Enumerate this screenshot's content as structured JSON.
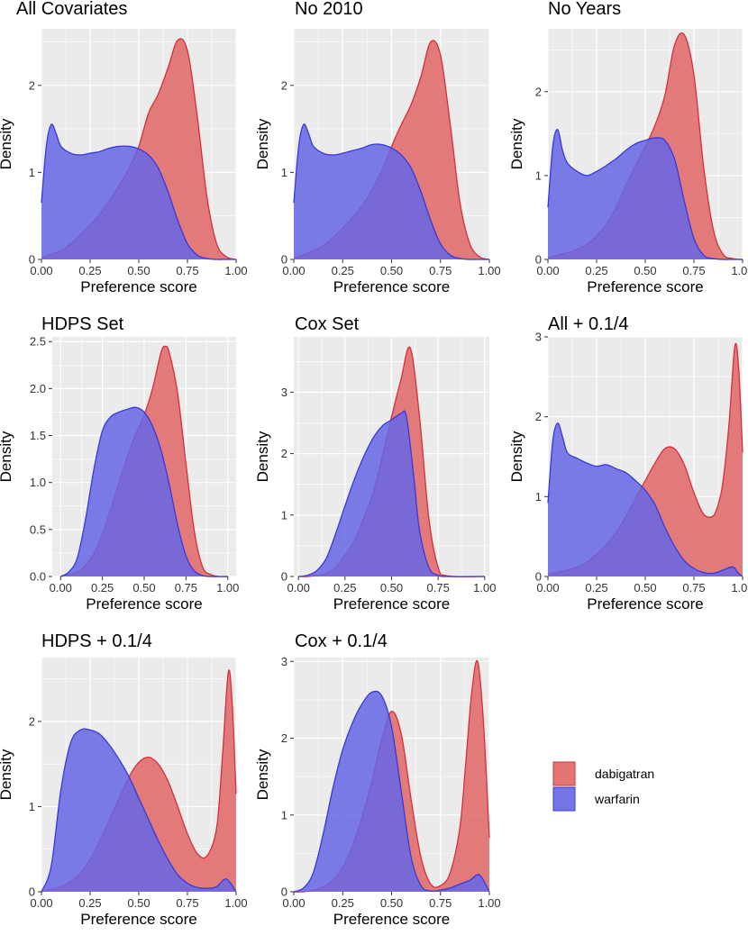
{
  "chart_data": [
    {
      "type": "area",
      "title": "All Covariates",
      "xlabel": "Preference score",
      "ylabel": "Density",
      "xlim": [
        0,
        1
      ],
      "ylim": [
        0,
        2.65
      ],
      "xticks": [
        0,
        0.25,
        0.5,
        0.75,
        1
      ],
      "xtick_labels": [
        "0.00",
        "0.25",
        "0.50",
        "0.75",
        "1.00"
      ],
      "yticks": [
        0,
        1,
        2
      ],
      "ytick_labels": [
        "0",
        "1",
        "2"
      ],
      "series": [
        {
          "name": "dabigatran",
          "x": [
            0,
            0.05,
            0.1,
            0.15,
            0.2,
            0.25,
            0.3,
            0.35,
            0.4,
            0.45,
            0.5,
            0.55,
            0.6,
            0.65,
            0.7,
            0.75,
            0.8,
            0.85,
            0.9,
            0.95,
            1.0
          ],
          "y": [
            0.02,
            0.06,
            0.1,
            0.18,
            0.28,
            0.4,
            0.52,
            0.68,
            0.85,
            1.05,
            1.3,
            1.68,
            1.9,
            2.2,
            2.52,
            2.4,
            1.65,
            0.72,
            0.18,
            0.03,
            0
          ]
        },
        {
          "name": "warfarin",
          "x": [
            0,
            0.025,
            0.05,
            0.075,
            0.1,
            0.15,
            0.2,
            0.25,
            0.3,
            0.35,
            0.4,
            0.45,
            0.5,
            0.55,
            0.6,
            0.65,
            0.7,
            0.75,
            0.8,
            0.85,
            0.9,
            0.95,
            1.0
          ],
          "y": [
            0.65,
            1.3,
            1.55,
            1.45,
            1.3,
            1.22,
            1.2,
            1.22,
            1.24,
            1.28,
            1.3,
            1.3,
            1.27,
            1.2,
            1.05,
            0.78,
            0.45,
            0.18,
            0.05,
            0.01,
            0,
            0,
            0
          ]
        }
      ]
    },
    {
      "type": "area",
      "title": "No 2010",
      "xlabel": "Preference score",
      "ylabel": "Density",
      "xlim": [
        0,
        1
      ],
      "ylim": [
        0,
        2.65
      ],
      "xticks": [
        0,
        0.25,
        0.5,
        0.75,
        1
      ],
      "xtick_labels": [
        "0.00",
        "0.25",
        "0.50",
        "0.75",
        "1.00"
      ],
      "yticks": [
        0,
        1,
        2
      ],
      "ytick_labels": [
        "0",
        "1",
        "2"
      ],
      "series": [
        {
          "name": "dabigatran",
          "x": [
            0,
            0.05,
            0.1,
            0.15,
            0.2,
            0.25,
            0.3,
            0.35,
            0.4,
            0.45,
            0.5,
            0.55,
            0.6,
            0.65,
            0.7,
            0.75,
            0.8,
            0.85,
            0.9,
            0.95,
            1.0
          ],
          "y": [
            0.02,
            0.05,
            0.1,
            0.16,
            0.25,
            0.36,
            0.48,
            0.62,
            0.8,
            1.02,
            1.3,
            1.55,
            1.78,
            2.1,
            2.5,
            2.35,
            1.55,
            0.65,
            0.18,
            0.03,
            0
          ]
        },
        {
          "name": "warfarin",
          "x": [
            0,
            0.025,
            0.05,
            0.075,
            0.1,
            0.15,
            0.2,
            0.25,
            0.3,
            0.35,
            0.4,
            0.45,
            0.5,
            0.55,
            0.6,
            0.65,
            0.7,
            0.75,
            0.8,
            0.85,
            0.9,
            0.95,
            1.0
          ],
          "y": [
            0.65,
            1.3,
            1.55,
            1.45,
            1.3,
            1.22,
            1.2,
            1.22,
            1.25,
            1.28,
            1.32,
            1.32,
            1.28,
            1.2,
            1.05,
            0.78,
            0.45,
            0.18,
            0.05,
            0.01,
            0,
            0,
            0
          ]
        }
      ]
    },
    {
      "type": "area",
      "title": "No Years",
      "xlabel": "Preference score",
      "ylabel": "Density",
      "xlim": [
        0,
        1
      ],
      "ylim": [
        0,
        2.75
      ],
      "xticks": [
        0,
        0.25,
        0.5,
        0.75,
        1
      ],
      "xtick_labels": [
        "0.00",
        "0.25",
        "0.50",
        "0.75",
        "1.00"
      ],
      "yticks": [
        0,
        1,
        2
      ],
      "ytick_labels": [
        "0",
        "1",
        "2"
      ],
      "series": [
        {
          "name": "dabigatran",
          "x": [
            0,
            0.05,
            0.1,
            0.15,
            0.2,
            0.25,
            0.3,
            0.35,
            0.4,
            0.45,
            0.5,
            0.55,
            0.6,
            0.65,
            0.7,
            0.75,
            0.8,
            0.85,
            0.9,
            0.95,
            1.0
          ],
          "y": [
            0.02,
            0.05,
            0.08,
            0.12,
            0.18,
            0.28,
            0.42,
            0.62,
            0.88,
            1.12,
            1.35,
            1.6,
            1.95,
            2.55,
            2.68,
            2.2,
            1.1,
            0.35,
            0.06,
            0.01,
            0
          ]
        },
        {
          "name": "warfarin",
          "x": [
            0,
            0.025,
            0.05,
            0.075,
            0.1,
            0.15,
            0.2,
            0.25,
            0.3,
            0.35,
            0.4,
            0.45,
            0.5,
            0.55,
            0.6,
            0.65,
            0.7,
            0.75,
            0.8,
            0.85,
            0.9,
            0.95,
            1.0
          ],
          "y": [
            0.62,
            1.35,
            1.55,
            1.3,
            1.15,
            1.05,
            1.0,
            1.05,
            1.12,
            1.2,
            1.3,
            1.38,
            1.42,
            1.45,
            1.42,
            1.2,
            0.7,
            0.25,
            0.05,
            0.01,
            0,
            0,
            0
          ]
        }
      ]
    },
    {
      "type": "area",
      "title": "HDPS Set",
      "xlabel": "Preference score",
      "ylabel": "Density",
      "xlim": [
        -0.05,
        1.05
      ],
      "ylim": [
        0,
        2.55
      ],
      "xticks": [
        0,
        0.25,
        0.5,
        0.75,
        1
      ],
      "xtick_labels": [
        "0.00",
        "0.25",
        "0.50",
        "0.75",
        "1.00"
      ],
      "yticks": [
        0,
        0.5,
        1,
        1.5,
        2,
        2.5
      ],
      "ytick_labels": [
        "0.0",
        "0.5",
        "1.0",
        "1.5",
        "2.0",
        "2.5"
      ],
      "series": [
        {
          "name": "dabigatran",
          "x": [
            0,
            0.05,
            0.1,
            0.15,
            0.2,
            0.25,
            0.3,
            0.35,
            0.4,
            0.45,
            0.5,
            0.55,
            0.6,
            0.625,
            0.65,
            0.7,
            0.75,
            0.8,
            0.85,
            0.9,
            0.95,
            1.0
          ],
          "y": [
            0,
            0.02,
            0.05,
            0.12,
            0.25,
            0.45,
            0.72,
            1.0,
            1.28,
            1.52,
            1.72,
            2.0,
            2.38,
            2.45,
            2.38,
            1.95,
            1.2,
            0.48,
            0.1,
            0.02,
            0,
            0
          ]
        },
        {
          "name": "warfarin",
          "x": [
            0,
            0.05,
            0.1,
            0.15,
            0.2,
            0.25,
            0.3,
            0.35,
            0.4,
            0.45,
            0.5,
            0.55,
            0.6,
            0.65,
            0.7,
            0.75,
            0.8,
            0.85,
            0.9,
            0.95,
            1.0
          ],
          "y": [
            0,
            0.05,
            0.2,
            0.62,
            1.15,
            1.55,
            1.7,
            1.75,
            1.78,
            1.8,
            1.75,
            1.6,
            1.35,
            0.98,
            0.55,
            0.22,
            0.06,
            0.01,
            0,
            0,
            0
          ]
        }
      ]
    },
    {
      "type": "area",
      "title": "Cox Set",
      "xlabel": "Preference score",
      "ylabel": "Density",
      "xlim": [
        -0.025,
        1.025
      ],
      "ylim": [
        0,
        3.9
      ],
      "xticks": [
        0,
        0.25,
        0.5,
        0.75,
        1
      ],
      "xtick_labels": [
        "0.00",
        "0.25",
        "0.50",
        "0.75",
        "1.00"
      ],
      "yticks": [
        0,
        1,
        2,
        3
      ],
      "ytick_labels": [
        "0",
        "1",
        "2",
        "3"
      ],
      "series": [
        {
          "name": "dabigatran",
          "x": [
            0,
            0.05,
            0.1,
            0.15,
            0.2,
            0.25,
            0.3,
            0.35,
            0.4,
            0.45,
            0.5,
            0.55,
            0.6,
            0.65,
            0.7,
            0.75,
            0.8,
            1.0
          ],
          "y": [
            0,
            0,
            0.02,
            0.05,
            0.15,
            0.35,
            0.58,
            0.95,
            1.35,
            1.95,
            2.6,
            3.2,
            3.72,
            2.6,
            0.95,
            0.15,
            0.01,
            0
          ]
        },
        {
          "name": "warfarin",
          "x": [
            0,
            0.05,
            0.1,
            0.15,
            0.2,
            0.25,
            0.3,
            0.35,
            0.4,
            0.45,
            0.5,
            0.55,
            0.58,
            0.62,
            0.65,
            0.7,
            0.75,
            0.8,
            1.0
          ],
          "y": [
            0,
            0.02,
            0.1,
            0.3,
            0.7,
            1.15,
            1.58,
            1.95,
            2.25,
            2.45,
            2.55,
            2.65,
            2.6,
            1.6,
            0.75,
            0.15,
            0.02,
            0,
            0
          ]
        }
      ]
    },
    {
      "type": "area",
      "title": "All + 0.1/4",
      "xlabel": "Preference score",
      "ylabel": "Density",
      "xlim": [
        0,
        1
      ],
      "ylim": [
        0,
        3.0
      ],
      "xticks": [
        0,
        0.25,
        0.5,
        0.75,
        1
      ],
      "xtick_labels": [
        "0.00",
        "0.25",
        "0.50",
        "0.75",
        "1.00"
      ],
      "yticks": [
        0,
        1,
        2,
        3
      ],
      "ytick_labels": [
        "0",
        "1",
        "2",
        "3"
      ],
      "series": [
        {
          "name": "dabigatran",
          "x": [
            0,
            0.05,
            0.1,
            0.15,
            0.2,
            0.25,
            0.3,
            0.35,
            0.4,
            0.45,
            0.5,
            0.55,
            0.6,
            0.65,
            0.7,
            0.75,
            0.8,
            0.85,
            0.88,
            0.9,
            0.93,
            0.96,
            0.98,
            1.0
          ],
          "y": [
            0.03,
            0.05,
            0.08,
            0.12,
            0.18,
            0.28,
            0.4,
            0.55,
            0.75,
            0.98,
            1.2,
            1.42,
            1.6,
            1.6,
            1.4,
            1.05,
            0.78,
            0.76,
            0.95,
            1.2,
            1.9,
            2.88,
            2.6,
            1.55
          ]
        },
        {
          "name": "warfarin",
          "x": [
            0,
            0.025,
            0.05,
            0.075,
            0.1,
            0.15,
            0.2,
            0.25,
            0.3,
            0.35,
            0.4,
            0.45,
            0.5,
            0.55,
            0.6,
            0.65,
            0.7,
            0.75,
            0.8,
            0.85,
            0.9,
            0.95,
            0.975,
            1.0
          ],
          "y": [
            0.92,
            1.7,
            1.92,
            1.75,
            1.55,
            1.48,
            1.42,
            1.38,
            1.4,
            1.35,
            1.3,
            1.2,
            1.08,
            0.9,
            0.62,
            0.38,
            0.2,
            0.1,
            0.05,
            0.04,
            0.08,
            0.12,
            0.05,
            0
          ]
        }
      ]
    },
    {
      "type": "area",
      "title": "HDPS + 0.1/4",
      "xlabel": "Preference score",
      "ylabel": "Density",
      "xlim": [
        0,
        1
      ],
      "ylim": [
        0,
        2.75
      ],
      "xticks": [
        0,
        0.25,
        0.5,
        0.75,
        1
      ],
      "xtick_labels": [
        "0.00",
        "0.25",
        "0.50",
        "0.75",
        "1.00"
      ],
      "yticks": [
        0,
        1,
        2
      ],
      "ytick_labels": [
        "0",
        "1",
        "2"
      ],
      "series": [
        {
          "name": "dabigatran",
          "x": [
            0,
            0.05,
            0.1,
            0.15,
            0.2,
            0.25,
            0.3,
            0.35,
            0.4,
            0.45,
            0.5,
            0.55,
            0.6,
            0.65,
            0.7,
            0.75,
            0.8,
            0.85,
            0.9,
            0.93,
            0.96,
            0.98,
            1.0
          ],
          "y": [
            0,
            0.03,
            0.06,
            0.12,
            0.22,
            0.38,
            0.6,
            0.85,
            1.1,
            1.35,
            1.52,
            1.58,
            1.5,
            1.3,
            1.0,
            0.68,
            0.45,
            0.42,
            0.75,
            1.6,
            2.58,
            2.2,
            1.15
          ]
        },
        {
          "name": "warfarin",
          "x": [
            0,
            0.05,
            0.1,
            0.15,
            0.2,
            0.25,
            0.3,
            0.35,
            0.4,
            0.45,
            0.5,
            0.55,
            0.6,
            0.65,
            0.7,
            0.75,
            0.8,
            0.85,
            0.9,
            0.95,
            1.0
          ],
          "y": [
            0,
            0.3,
            1.2,
            1.75,
            1.9,
            1.9,
            1.85,
            1.72,
            1.55,
            1.35,
            1.1,
            0.85,
            0.6,
            0.38,
            0.2,
            0.1,
            0.05,
            0.04,
            0.06,
            0.15,
            0
          ]
        }
      ]
    },
    {
      "type": "area",
      "title": "Cox + 0.1/4",
      "xlabel": "Preference score",
      "ylabel": "Density",
      "xlim": [
        0,
        1
      ],
      "ylim": [
        0,
        3.05
      ],
      "xticks": [
        0,
        0.25,
        0.5,
        0.75,
        1
      ],
      "xtick_labels": [
        "0.00",
        "0.25",
        "0.50",
        "0.75",
        "1.00"
      ],
      "yticks": [
        0,
        1,
        2,
        3
      ],
      "ytick_labels": [
        "0",
        "1",
        "2",
        "3"
      ],
      "series": [
        {
          "name": "dabigatran",
          "x": [
            0,
            0.05,
            0.1,
            0.15,
            0.2,
            0.25,
            0.3,
            0.35,
            0.4,
            0.45,
            0.5,
            0.55,
            0.6,
            0.65,
            0.7,
            0.75,
            0.8,
            0.85,
            0.88,
            0.91,
            0.94,
            0.97,
            1.0
          ],
          "y": [
            0,
            0,
            0.02,
            0.06,
            0.15,
            0.32,
            0.6,
            0.98,
            1.45,
            1.98,
            2.35,
            2.05,
            1.2,
            0.45,
            0.1,
            0.08,
            0.25,
            0.85,
            1.7,
            2.6,
            3.0,
            2.2,
            0.7
          ]
        },
        {
          "name": "warfarin",
          "x": [
            0,
            0.05,
            0.1,
            0.15,
            0.2,
            0.25,
            0.3,
            0.35,
            0.4,
            0.45,
            0.5,
            0.55,
            0.6,
            0.65,
            0.7,
            0.75,
            0.8,
            0.85,
            0.9,
            0.95,
            1.0
          ],
          "y": [
            0,
            0.05,
            0.25,
            0.75,
            1.35,
            1.85,
            2.2,
            2.45,
            2.6,
            2.55,
            2.15,
            1.3,
            0.45,
            0.08,
            0.01,
            0.02,
            0.05,
            0.1,
            0.15,
            0.22,
            0
          ]
        }
      ]
    }
  ],
  "legend": {
    "items": [
      {
        "label": "dabigatran",
        "color": "#e06666"
      },
      {
        "label": "warfarin",
        "color": "#6666e6"
      }
    ]
  },
  "colors": {
    "dabigatran_fill": "#e06666",
    "dabigatran_line": "#d62e3a",
    "warfarin_fill": "#6666e6",
    "warfarin_line": "#3838dc",
    "panel_bg": "#ebebeb",
    "grid": "#ffffff"
  }
}
